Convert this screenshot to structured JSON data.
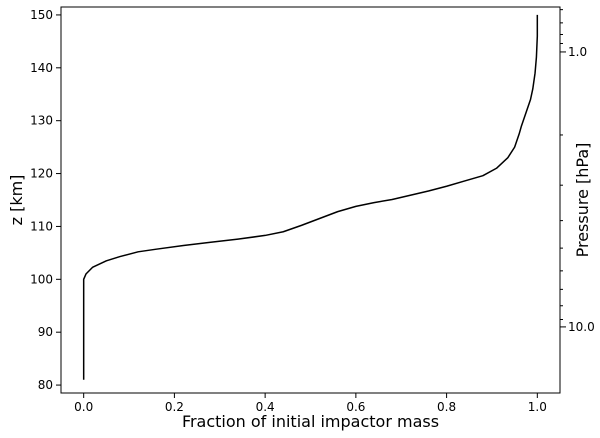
{
  "chart_data": {
    "type": "line",
    "title": "",
    "xlabel": "Fraction of initial impactor mass",
    "ylabel": "z [km]",
    "y2label": "Pressure [hPa]",
    "xlim": [
      -0.05,
      1.05
    ],
    "ylim": [
      78.5,
      151.5
    ],
    "xticks": [
      0.0,
      0.2,
      0.4,
      0.6,
      0.8,
      1.0
    ],
    "xtick_labels": [
      "0.0",
      "0.2",
      "0.4",
      "0.6",
      "0.8",
      "1.0"
    ],
    "yticks": [
      80,
      90,
      100,
      110,
      120,
      130,
      140,
      150
    ],
    "ytick_labels": [
      "80",
      "90",
      "100",
      "110",
      "120",
      "130",
      "140",
      "150"
    ],
    "y2_major_ticks": [
      {
        "label": "1.0",
        "z": 143.0
      },
      {
        "label": "10.0",
        "z": 91.0
      }
    ],
    "y2_minor_ticks_z": [
      151.0,
      148.5,
      146.3,
      144.6,
      127.3,
      117.8,
      111.1,
      105.9,
      101.6,
      98.1,
      95.0,
      92.4
    ],
    "grid": false,
    "legend": "none",
    "line_color": "#000000",
    "series": [
      {
        "name": "",
        "x": [
          0.0,
          0.0,
          0.0,
          0.005,
          0.02,
          0.05,
          0.08,
          0.12,
          0.16,
          0.22,
          0.28,
          0.34,
          0.4,
          0.44,
          0.48,
          0.52,
          0.56,
          0.6,
          0.64,
          0.68,
          0.72,
          0.76,
          0.8,
          0.84,
          0.88,
          0.91,
          0.935,
          0.95,
          0.96,
          0.965,
          0.975,
          0.985,
          0.99,
          0.995,
          0.998,
          1.0,
          1.0
        ],
        "y": [
          81.0,
          90.0,
          100.0,
          101.0,
          102.3,
          103.5,
          104.3,
          105.2,
          105.7,
          106.4,
          107.0,
          107.6,
          108.3,
          109.0,
          110.2,
          111.5,
          112.8,
          113.8,
          114.5,
          115.1,
          115.9,
          116.7,
          117.6,
          118.6,
          119.6,
          121.0,
          123.0,
          125.0,
          127.5,
          129.0,
          131.5,
          134.0,
          136.0,
          139.0,
          142.0,
          146.0,
          150.0
        ]
      }
    ]
  }
}
